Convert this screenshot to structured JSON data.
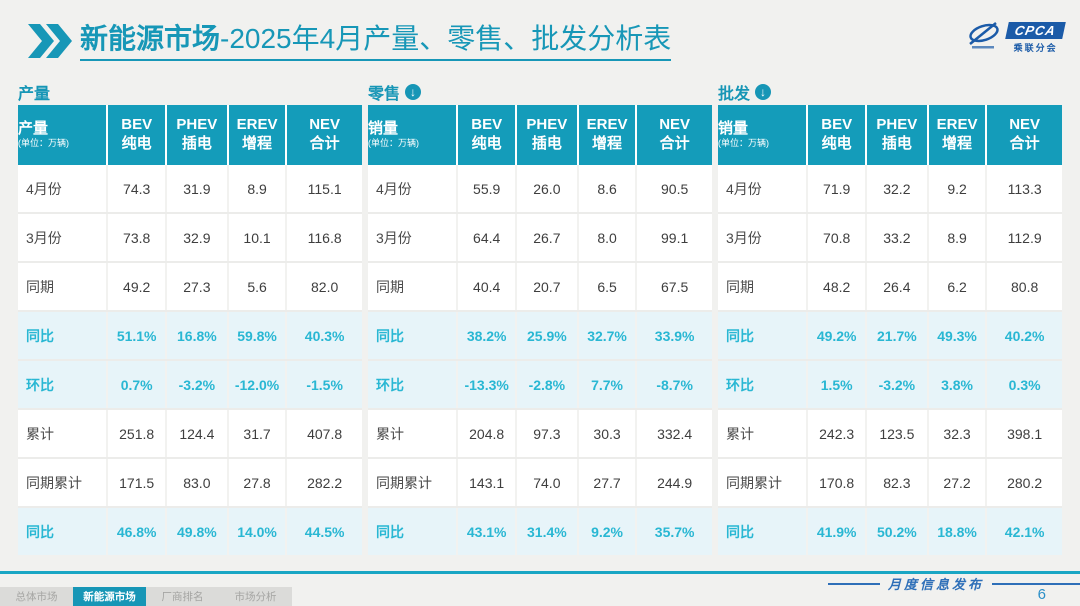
{
  "title": {
    "bold": "新能源市场",
    "rest": "-2025年4月产量、零售、批发分析表"
  },
  "logo": {
    "text": "CPCA",
    "subtext": "乘联分会"
  },
  "watermark": "乘联分会",
  "colors": {
    "teal": "#149CBA",
    "cyan_text": "#29B7D3",
    "percent_row_bg": "#E7F4F9",
    "page_bg": "#F1F1EF",
    "footer_blue": "#2E6FB8"
  },
  "chart_data": [
    {
      "type": "table",
      "section_label": "产量",
      "section_icon": null,
      "corner_label": "产量",
      "unit_note": "(单位：万辆)",
      "columns": [
        {
          "en": "BEV",
          "zh": "纯电"
        },
        {
          "en": "PHEV",
          "zh": "插电"
        },
        {
          "en": "EREV",
          "zh": "增程"
        },
        {
          "en": "NEV",
          "zh": "合计"
        }
      ],
      "rows": [
        {
          "label": "4月份",
          "values": [
            "74.3",
            "31.9",
            "8.9",
            "115.1"
          ],
          "percent": false
        },
        {
          "label": "3月份",
          "values": [
            "73.8",
            "32.9",
            "10.1",
            "116.8"
          ],
          "percent": false
        },
        {
          "label": "同期",
          "values": [
            "49.2",
            "27.3",
            "5.6",
            "82.0"
          ],
          "percent": false
        },
        {
          "label": "同比",
          "values": [
            "51.1%",
            "16.8%",
            "59.8%",
            "40.3%"
          ],
          "percent": true
        },
        {
          "label": "环比",
          "values": [
            "0.7%",
            "-3.2%",
            "-12.0%",
            "-1.5%"
          ],
          "percent": true
        },
        {
          "label": "累计",
          "values": [
            "251.8",
            "124.4",
            "31.7",
            "407.8"
          ],
          "percent": false
        },
        {
          "label": "同期累计",
          "values": [
            "171.5",
            "83.0",
            "27.8",
            "282.2"
          ],
          "percent": false
        },
        {
          "label": "同比",
          "values": [
            "46.8%",
            "49.8%",
            "14.0%",
            "44.5%"
          ],
          "percent": true
        }
      ]
    },
    {
      "type": "table",
      "section_label": "零售",
      "section_icon": "circle-down-arrow-icon",
      "corner_label": "销量",
      "unit_note": "(单位：万辆)",
      "columns": [
        {
          "en": "BEV",
          "zh": "纯电"
        },
        {
          "en": "PHEV",
          "zh": "插电"
        },
        {
          "en": "EREV",
          "zh": "增程"
        },
        {
          "en": "NEV",
          "zh": "合计"
        }
      ],
      "rows": [
        {
          "label": "4月份",
          "values": [
            "55.9",
            "26.0",
            "8.6",
            "90.5"
          ],
          "percent": false
        },
        {
          "label": "3月份",
          "values": [
            "64.4",
            "26.7",
            "8.0",
            "99.1"
          ],
          "percent": false
        },
        {
          "label": "同期",
          "values": [
            "40.4",
            "20.7",
            "6.5",
            "67.5"
          ],
          "percent": false
        },
        {
          "label": "同比",
          "values": [
            "38.2%",
            "25.9%",
            "32.7%",
            "33.9%"
          ],
          "percent": true
        },
        {
          "label": "环比",
          "values": [
            "-13.3%",
            "-2.8%",
            "7.7%",
            "-8.7%"
          ],
          "percent": true
        },
        {
          "label": "累计",
          "values": [
            "204.8",
            "97.3",
            "30.3",
            "332.4"
          ],
          "percent": false
        },
        {
          "label": "同期累计",
          "values": [
            "143.1",
            "74.0",
            "27.7",
            "244.9"
          ],
          "percent": false
        },
        {
          "label": "同比",
          "values": [
            "43.1%",
            "31.4%",
            "9.2%",
            "35.7%"
          ],
          "percent": true
        }
      ]
    },
    {
      "type": "table",
      "section_label": "批发",
      "section_icon": "circle-down-arrow-icon",
      "corner_label": "销量",
      "unit_note": "(单位：万辆)",
      "columns": [
        {
          "en": "BEV",
          "zh": "纯电"
        },
        {
          "en": "PHEV",
          "zh": "插电"
        },
        {
          "en": "EREV",
          "zh": "增程"
        },
        {
          "en": "NEV",
          "zh": "合计"
        }
      ],
      "rows": [
        {
          "label": "4月份",
          "values": [
            "71.9",
            "32.2",
            "9.2",
            "113.3"
          ],
          "percent": false
        },
        {
          "label": "3月份",
          "values": [
            "70.8",
            "33.2",
            "8.9",
            "112.9"
          ],
          "percent": false
        },
        {
          "label": "同期",
          "values": [
            "48.2",
            "26.4",
            "6.2",
            "80.8"
          ],
          "percent": false
        },
        {
          "label": "同比",
          "values": [
            "49.2%",
            "21.7%",
            "49.3%",
            "40.2%"
          ],
          "percent": true
        },
        {
          "label": "环比",
          "values": [
            "1.5%",
            "-3.2%",
            "3.8%",
            "0.3%"
          ],
          "percent": true
        },
        {
          "label": "累计",
          "values": [
            "242.3",
            "123.5",
            "32.3",
            "398.1"
          ],
          "percent": false
        },
        {
          "label": "同期累计",
          "values": [
            "170.8",
            "82.3",
            "27.2",
            "280.2"
          ],
          "percent": false
        },
        {
          "label": "同比",
          "values": [
            "41.9%",
            "50.2%",
            "18.8%",
            "42.1%"
          ],
          "percent": true
        }
      ]
    }
  ],
  "footer": {
    "tabs": [
      {
        "label": "总体市场",
        "active": false
      },
      {
        "label": "新能源市场",
        "active": true
      },
      {
        "label": "厂商排名",
        "active": false
      },
      {
        "label": "市场分析",
        "active": false
      }
    ],
    "release_label": "月度信息发布",
    "page_number": "6"
  }
}
